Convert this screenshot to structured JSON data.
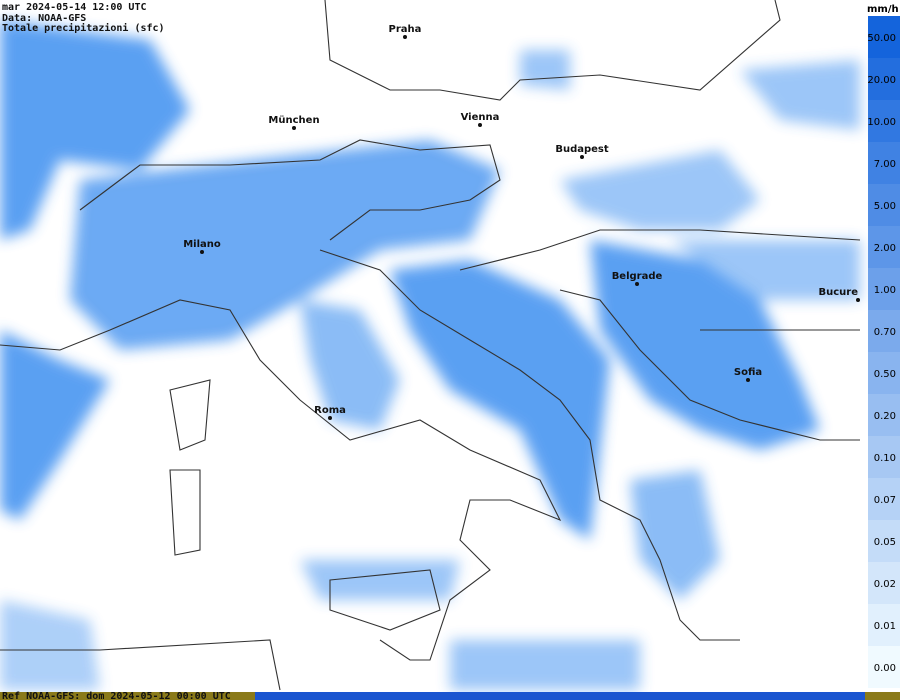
{
  "header": {
    "lines": [
      "mar 2024-05-14 12:00 UTC",
      "Data: NOAA-GFS",
      "Totale precipitazioni (sfc)"
    ]
  },
  "cities": [
    {
      "name": "Praha"
    },
    {
      "name": "München"
    },
    {
      "name": "Vienna"
    },
    {
      "name": "Budapest"
    },
    {
      "name": "Milano"
    },
    {
      "name": "Belgrade"
    },
    {
      "name": "Bucure"
    },
    {
      "name": "Sofia"
    },
    {
      "name": "Roma"
    }
  ],
  "legend": {
    "unit": "mm/h",
    "levels": [
      "50.00",
      "20.00",
      "10.00",
      "7.00",
      "5.00",
      "2.00",
      "1.00",
      "0.70",
      "0.50",
      "0.20",
      "0.10",
      "0.07",
      "0.05",
      "0.02",
      "0.01",
      "0.00"
    ]
  },
  "footer": "Ref NOAA-GFS: dom 2024-05-12 00:00 UTC"
}
